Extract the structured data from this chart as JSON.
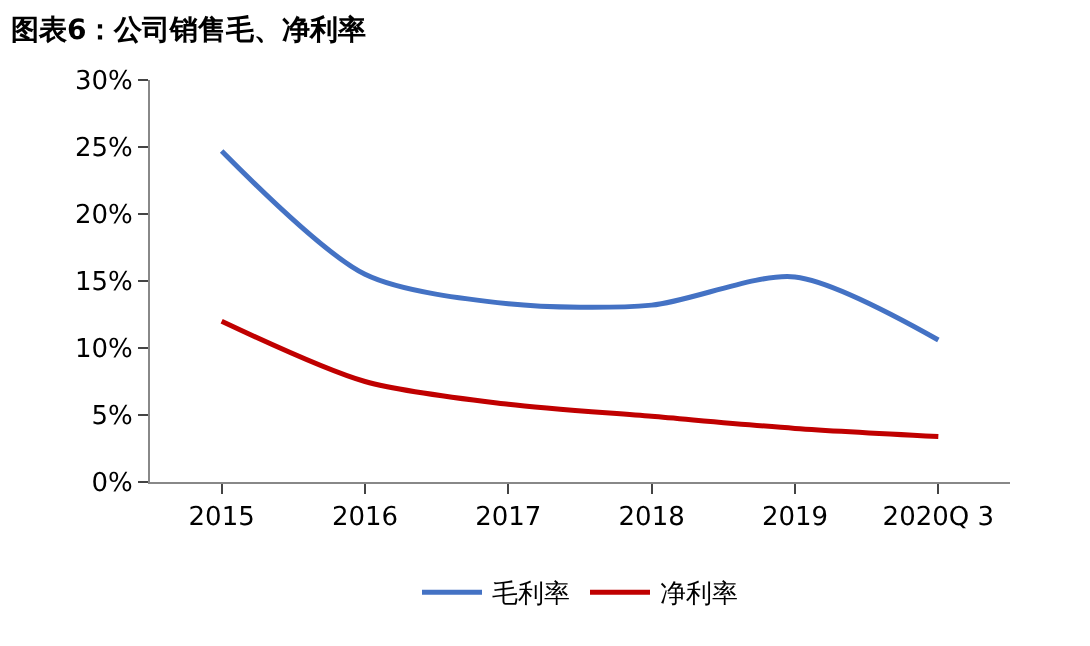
{
  "chart_data": {
    "type": "line",
    "title": "图表6：公司销售毛、净利率",
    "categories": [
      "2015",
      "2016",
      "2017",
      "2018",
      "2019",
      "2020Q 3"
    ],
    "series": [
      {
        "name": "毛利率",
        "color": "#4472c4",
        "values": [
          24.7,
          15.5,
          13.3,
          13.2,
          15.3,
          10.6
        ]
      },
      {
        "name": "净利率",
        "color": "#c00000",
        "values": [
          12.0,
          7.5,
          5.8,
          4.9,
          4.0,
          3.4
        ]
      }
    ],
    "ylim": [
      0,
      30
    ],
    "yticks": [
      {
        "value": 0,
        "label": "0%"
      },
      {
        "value": 5,
        "label": "5%"
      },
      {
        "value": 10,
        "label": "10%"
      },
      {
        "value": 15,
        "label": "15%"
      },
      {
        "value": 20,
        "label": "20%"
      },
      {
        "value": 25,
        "label": "25%"
      },
      {
        "value": 30,
        "label": "30%"
      }
    ],
    "legend": "bottom",
    "marker": "none",
    "line_style": "solid"
  }
}
